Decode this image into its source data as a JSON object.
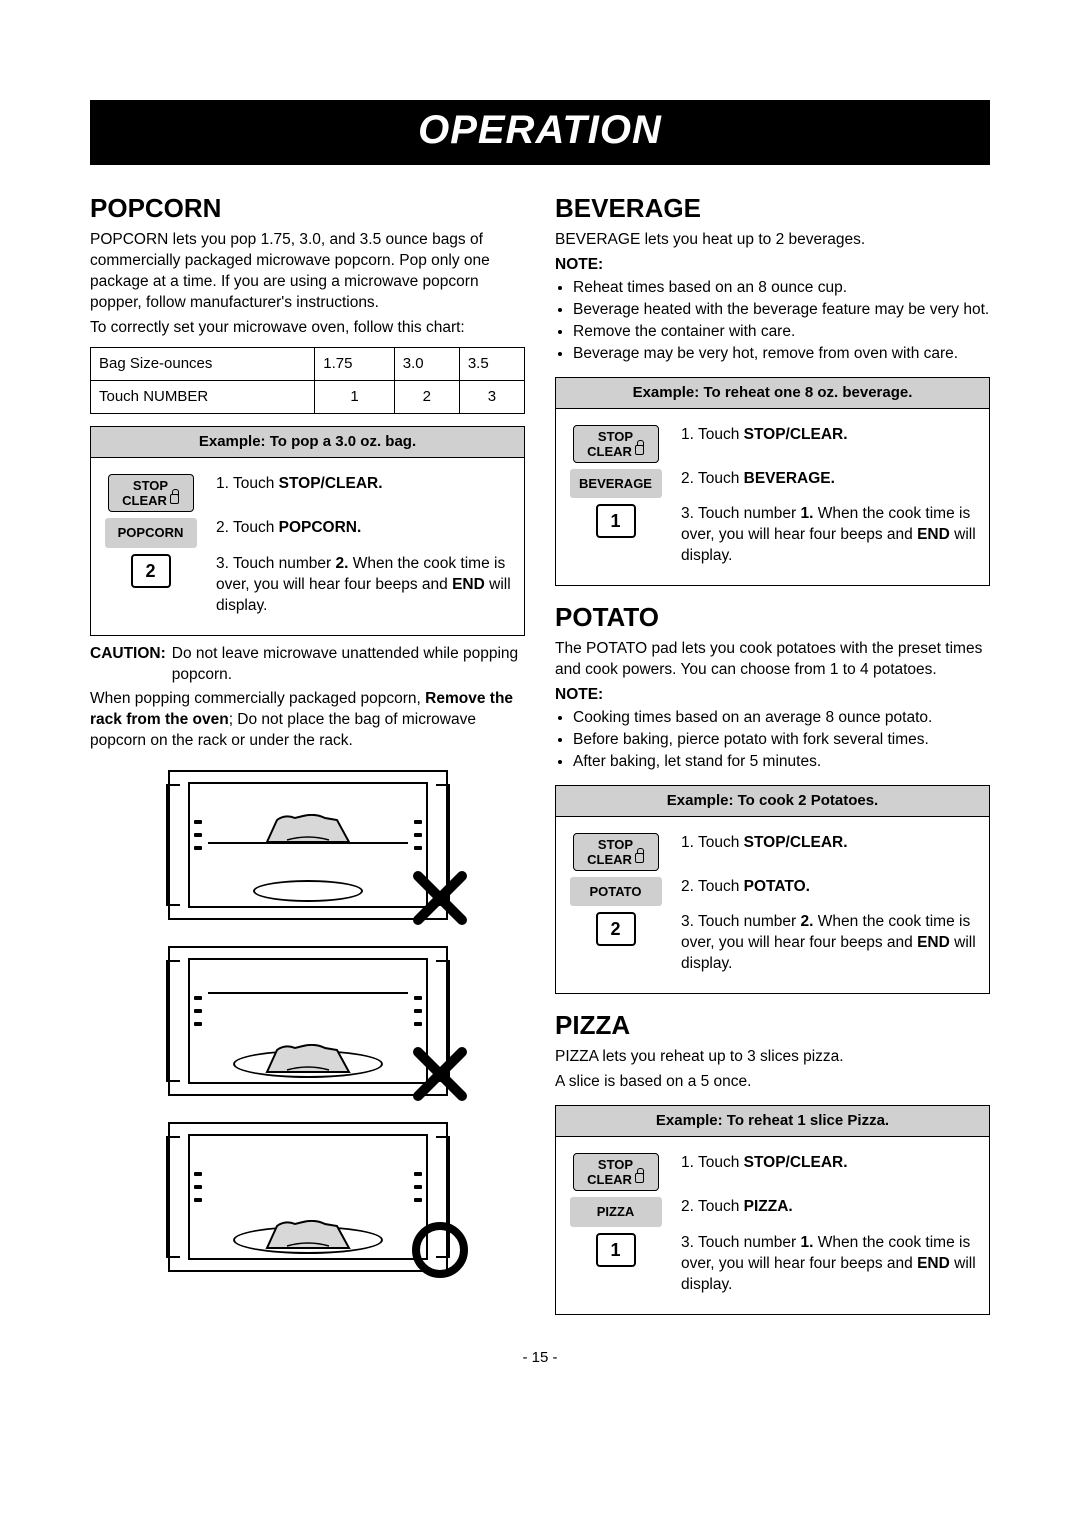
{
  "banner": "OPERATION",
  "page_number": "- 15 -",
  "popcorn": {
    "heading": "POPCORN",
    "intro": "POPCORN lets you pop 1.75, 3.0, and 3.5 ounce bags of commercially packaged microwave popcorn. Pop only one package at a time. If you are using a microwave popcorn popper, follow manufacturer's instructions.",
    "chart_prefix": "To correctly set your microwave oven, follow this chart:",
    "table": {
      "row1_label": "Bag Size-ounces",
      "row1_vals": [
        "1.75",
        "3.0",
        "3.5"
      ],
      "row2_label": "Touch NUMBER",
      "row2_vals": [
        "1",
        "2",
        "3"
      ]
    },
    "example_title": "Example: To pop a 3.0 oz. bag.",
    "steps": [
      {
        "btn_type": "stopclear",
        "text_prefix": "1. Touch ",
        "bold": "STOP/CLEAR.",
        "text_suffix": ""
      },
      {
        "btn_type": "func",
        "btn_label": "POPCORN",
        "text_prefix": "2. Touch ",
        "bold": "POPCORN.",
        "text_suffix": ""
      },
      {
        "btn_type": "num",
        "btn_label": "2",
        "text_prefix": "3. Touch number ",
        "bold": "2.",
        "text_suffix": " When the cook time is over, you will hear four beeps and ",
        "bold2": "END",
        "text_suffix2": " will display."
      }
    ],
    "caution_label": "CAUTION:",
    "caution_text": "Do not leave microwave unattended while popping popcorn.",
    "after_caution_1": "When popping commercially packaged popcorn,",
    "after_caution_bold": "Remove the rack from the oven",
    "after_caution_2": "; Do not place the bag of microwave popcorn on the rack or under the rack."
  },
  "beverage": {
    "heading": "BEVERAGE",
    "intro": "BEVERAGE lets you heat up to 2 beverages.",
    "note_label": "NOTE:",
    "notes": [
      "Reheat times based on an 8 ounce cup.",
      "Beverage heated with the beverage feature may be very hot.",
      "Remove the container with care.",
      "Beverage may be very hot, remove from oven with care."
    ],
    "example_title": "Example: To reheat one 8 oz. beverage.",
    "steps": [
      {
        "btn_type": "stopclear",
        "text_prefix": "1. Touch ",
        "bold": "STOP/CLEAR.",
        "text_suffix": ""
      },
      {
        "btn_type": "func",
        "btn_label": "BEVERAGE",
        "text_prefix": "2. Touch ",
        "bold": "BEVERAGE.",
        "text_suffix": ""
      },
      {
        "btn_type": "num",
        "btn_label": "1",
        "text_prefix": "3. Touch number ",
        "bold": "1.",
        "text_suffix": " When the cook time is over, you will hear four beeps and ",
        "bold2": "END",
        "text_suffix2": " will display."
      }
    ]
  },
  "potato": {
    "heading": "POTATO",
    "intro": "The POTATO pad lets you cook potatoes with the preset times and cook powers. You can choose from 1 to 4 potatoes.",
    "note_label": "NOTE:",
    "notes": [
      "Cooking times based on an average 8 ounce potato.",
      "Before baking, pierce potato with fork several times.",
      "After baking, let stand for 5 minutes."
    ],
    "example_title": "Example: To cook 2 Potatoes.",
    "steps": [
      {
        "btn_type": "stopclear",
        "text_prefix": "1. Touch ",
        "bold": "STOP/CLEAR.",
        "text_suffix": ""
      },
      {
        "btn_type": "func",
        "btn_label": "POTATO",
        "text_prefix": "2. Touch ",
        "bold": "POTATO.",
        "text_suffix": ""
      },
      {
        "btn_type": "num",
        "btn_label": "2",
        "text_prefix": "3. Touch number ",
        "bold": "2.",
        "text_suffix": " When the cook time is over, you will hear four beeps and ",
        "bold2": "END",
        "text_suffix2": " will display."
      }
    ]
  },
  "pizza": {
    "heading": "PIZZA",
    "intro1": "PIZZA lets you reheat up to 3 slices pizza.",
    "intro2": "A slice is based on a 5 once.",
    "example_title": "Example: To reheat 1 slice Pizza.",
    "steps": [
      {
        "btn_type": "stopclear",
        "text_prefix": "1. Touch ",
        "bold": "STOP/CLEAR.",
        "text_suffix": ""
      },
      {
        "btn_type": "func",
        "btn_label": "PIZZA",
        "text_prefix": "2. Touch ",
        "bold": "PIZZA.",
        "text_suffix": ""
      },
      {
        "btn_type": "num",
        "btn_label": "1",
        "text_prefix": "3. Touch number ",
        "bold": "1.",
        "text_suffix": " When the cook time is over, you will hear four beeps and ",
        "bold2": "END",
        "text_suffix2": " will display."
      }
    ]
  },
  "stopclear": {
    "line1": "STOP",
    "line2": "CLEAR"
  }
}
